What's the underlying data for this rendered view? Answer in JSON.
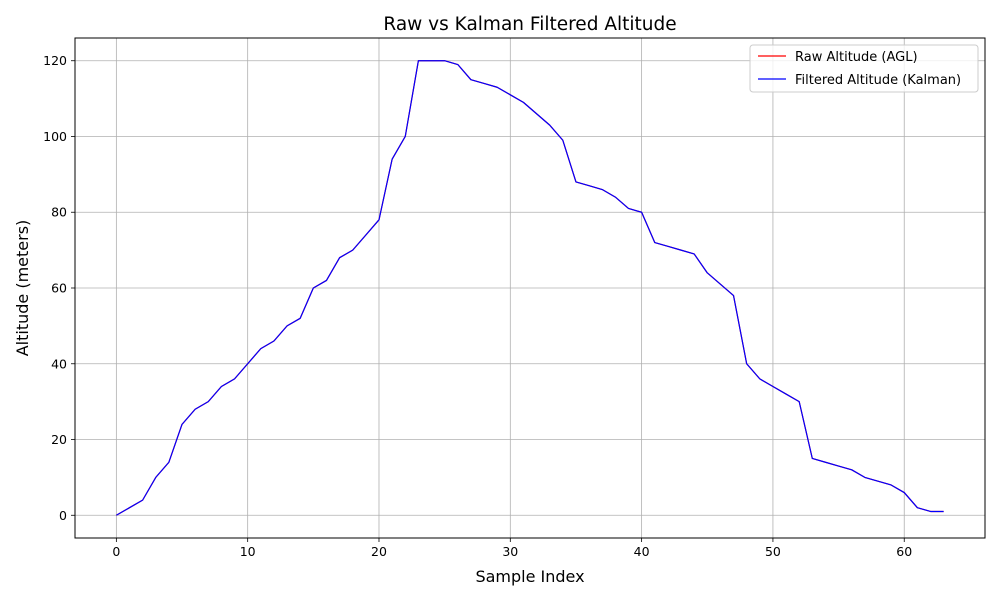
{
  "chart_data": {
    "type": "line",
    "title": "Raw vs Kalman Filtered Altitude",
    "xlabel": "Sample Index",
    "ylabel": "Altitude (meters)",
    "xlim": [
      -3.15,
      66.15
    ],
    "ylim": [
      -6,
      126
    ],
    "xticks": [
      0,
      10,
      20,
      30,
      40,
      50,
      60
    ],
    "yticks": [
      0,
      20,
      40,
      60,
      80,
      100,
      120
    ],
    "grid": true,
    "legend_position": "top-right",
    "x": [
      0,
      1,
      2,
      3,
      4,
      5,
      6,
      7,
      8,
      9,
      10,
      11,
      12,
      13,
      14,
      15,
      16,
      17,
      18,
      19,
      20,
      21,
      22,
      23,
      24,
      25,
      26,
      27,
      28,
      29,
      30,
      31,
      32,
      33,
      34,
      35,
      36,
      37,
      38,
      39,
      40,
      41,
      42,
      43,
      44,
      45,
      46,
      47,
      48,
      49,
      50,
      51,
      52,
      53,
      54,
      55,
      56,
      57,
      58,
      59,
      60,
      61,
      62,
      63
    ],
    "series": [
      {
        "name": "Raw Altitude (AGL)",
        "color": "#ff0000",
        "values": [
          0,
          2,
          4,
          10,
          14,
          24,
          28,
          30,
          34,
          36,
          40,
          44,
          46,
          50,
          52,
          60,
          62,
          68,
          70,
          74,
          78,
          94,
          100,
          120,
          120,
          120,
          119,
          115,
          114,
          113,
          111,
          109,
          106,
          103,
          99,
          88,
          87,
          86,
          84,
          81,
          80,
          72,
          71,
          70,
          69,
          64,
          61,
          58,
          40,
          36,
          34,
          32,
          30,
          15,
          14,
          13,
          12,
          10,
          9,
          8,
          6,
          2,
          1,
          1
        ]
      },
      {
        "name": "Filtered Altitude (Kalman)",
        "color": "#0000ff",
        "values": [
          0,
          2,
          4,
          10,
          14,
          24,
          28,
          30,
          34,
          36,
          40,
          44,
          46,
          50,
          52,
          60,
          62,
          68,
          70,
          74,
          78,
          94,
          100,
          120,
          120,
          120,
          119,
          115,
          114,
          113,
          111,
          109,
          106,
          103,
          99,
          88,
          87,
          86,
          84,
          81,
          80,
          72,
          71,
          70,
          69,
          64,
          61,
          58,
          40,
          36,
          34,
          32,
          30,
          15,
          14,
          13,
          12,
          10,
          9,
          8,
          6,
          2,
          1,
          1
        ]
      }
    ]
  }
}
